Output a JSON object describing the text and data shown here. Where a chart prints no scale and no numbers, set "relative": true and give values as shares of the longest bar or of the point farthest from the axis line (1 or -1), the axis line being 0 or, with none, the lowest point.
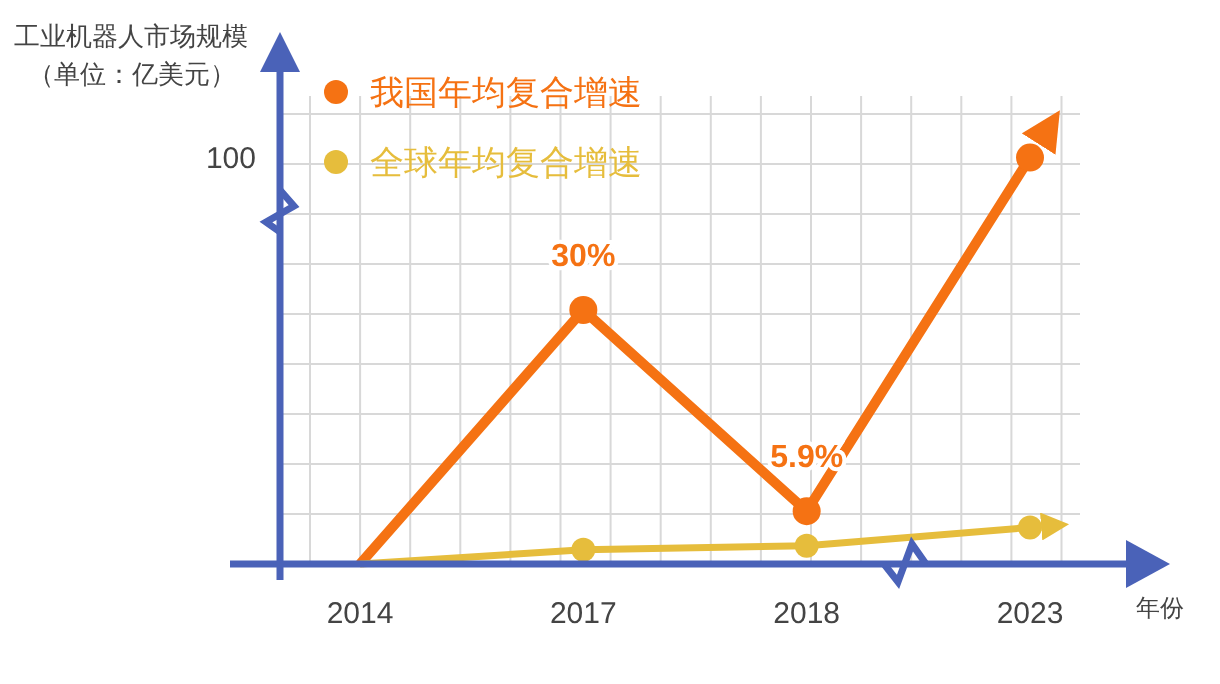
{
  "chart_data": {
    "type": "line",
    "ylabel": "工业机器人市场规模（单位：亿美元）",
    "xlabel": "年份",
    "categories": [
      "2014",
      "2017",
      "2018",
      "2023"
    ],
    "series": [
      {
        "name": "我国年均复合增速",
        "color": "#f57213",
        "values": [
          0,
          0.625,
          0.13,
          1
        ]
      },
      {
        "name": "全球年均复合增速",
        "color": "#e6bd3c",
        "values": [
          0,
          0.035,
          0.045,
          0.09
        ]
      }
    ],
    "relative": true,
    "annotations": [
      "100",
      {
        "text": "30%",
        "x": "2017",
        "y": 0.625
      },
      {
        "text": "5.9%",
        "x": "2018",
        "y": 0.13
      }
    ],
    "grid": true,
    "legend": "top left",
    "marker": "circle",
    "line_style": "solid"
  }
}
